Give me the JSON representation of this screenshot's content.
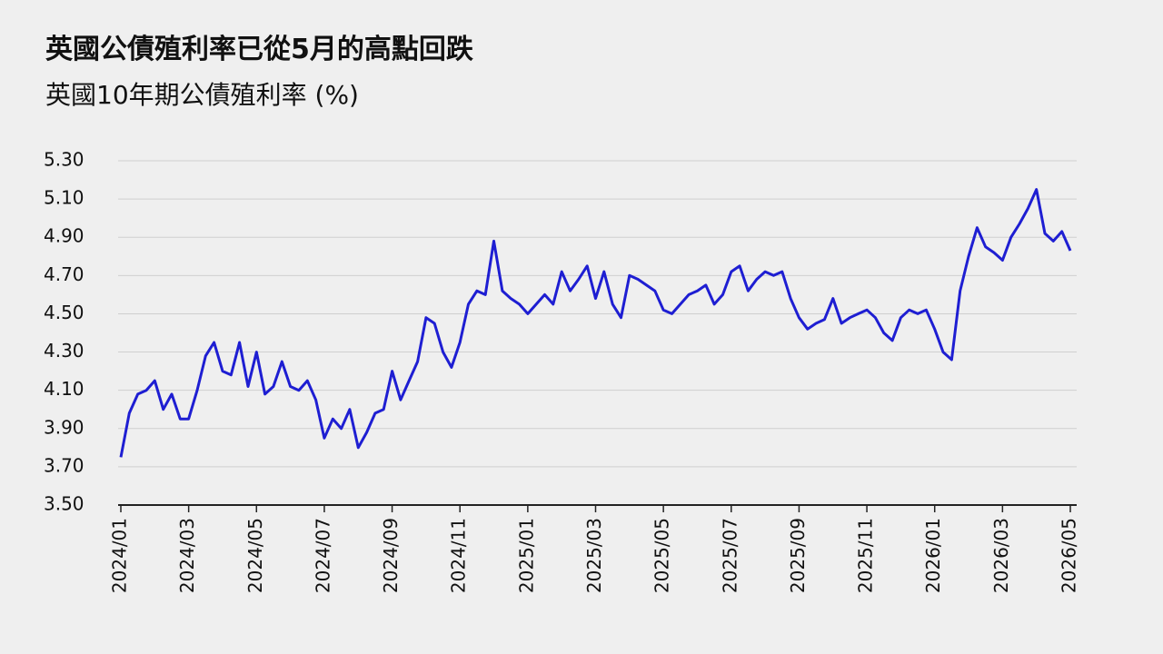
{
  "chart_data": {
    "type": "line",
    "title": "英國公債殖利率已從5月的高點回跌",
    "subtitle": "英國10年期公債殖利率 (%)",
    "color": "#1e1ed2",
    "grid": true,
    "ylim": [
      3.5,
      5.3
    ],
    "yticks": [
      {
        "value": 3.5,
        "label": "3.50"
      },
      {
        "value": 3.7,
        "label": "3.70"
      },
      {
        "value": 3.9,
        "label": "3.90"
      },
      {
        "value": 4.1,
        "label": "4.10"
      },
      {
        "value": 4.3,
        "label": "4.30"
      },
      {
        "value": 4.5,
        "label": "4.50"
      },
      {
        "value": 4.7,
        "label": "4.70"
      },
      {
        "value": 4.9,
        "label": "4.90"
      },
      {
        "value": 5.1,
        "label": "5.10"
      },
      {
        "value": 5.3,
        "label": "5.30"
      }
    ],
    "xticks": [
      "2024/01",
      "2024/03",
      "2024/05",
      "2024/07",
      "2024/09",
      "2024/11",
      "2025/01",
      "2025/03",
      "2025/05",
      "2025/07",
      "2025/09",
      "2025/11",
      "2026/01",
      "2026/03",
      "2026/05"
    ],
    "x": [
      "2024/01",
      "2024/01",
      "2024/01",
      "2024/01",
      "2024/02",
      "2024/02",
      "2024/02",
      "2024/02",
      "2024/03",
      "2024/03",
      "2024/03",
      "2024/03",
      "2024/04",
      "2024/04",
      "2024/04",
      "2024/04",
      "2024/05",
      "2024/05",
      "2024/05",
      "2024/05",
      "2024/06",
      "2024/06",
      "2024/06",
      "2024/06",
      "2024/07",
      "2024/07",
      "2024/07",
      "2024/07",
      "2024/08",
      "2024/08",
      "2024/08",
      "2024/08",
      "2024/09",
      "2024/09",
      "2024/09",
      "2024/09",
      "2024/10",
      "2024/10",
      "2024/10",
      "2024/10",
      "2024/11",
      "2024/11",
      "2024/11",
      "2024/11",
      "2024/12",
      "2024/12",
      "2024/12",
      "2024/12",
      "2025/01",
      "2025/01",
      "2025/01",
      "2025/01",
      "2025/02",
      "2025/02",
      "2025/02",
      "2025/02",
      "2025/03",
      "2025/03",
      "2025/03",
      "2025/03",
      "2025/04",
      "2025/04",
      "2025/04",
      "2025/04",
      "2025/05",
      "2025/05",
      "2025/05",
      "2025/05",
      "2025/06",
      "2025/06",
      "2025/06",
      "2025/06",
      "2025/07",
      "2025/07",
      "2025/07",
      "2025/07",
      "2025/08",
      "2025/08",
      "2025/08",
      "2025/08",
      "2025/09",
      "2025/09",
      "2025/09",
      "2025/09",
      "2025/10",
      "2025/10",
      "2025/10",
      "2025/10",
      "2025/11",
      "2025/11",
      "2025/11",
      "2025/11",
      "2025/12",
      "2025/12",
      "2025/12",
      "2025/12",
      "2026/01",
      "2026/01",
      "2026/01",
      "2026/01",
      "2026/02",
      "2026/02",
      "2026/02",
      "2026/02",
      "2026/03",
      "2026/03",
      "2026/03",
      "2026/03",
      "2026/04",
      "2026/04",
      "2026/04",
      "2026/04",
      "2026/05"
    ],
    "values": [
      3.75,
      3.98,
      4.08,
      4.1,
      4.15,
      4.0,
      4.08,
      3.95,
      3.95,
      4.1,
      4.28,
      4.35,
      4.2,
      4.18,
      4.35,
      4.12,
      4.3,
      4.08,
      4.12,
      4.25,
      4.12,
      4.1,
      4.15,
      4.05,
      3.85,
      3.95,
      3.9,
      4.0,
      3.8,
      3.88,
      3.98,
      4.0,
      4.2,
      4.05,
      4.15,
      4.25,
      4.48,
      4.45,
      4.3,
      4.22,
      4.35,
      4.55,
      4.62,
      4.6,
      4.88,
      4.62,
      4.58,
      4.55,
      4.5,
      4.55,
      4.6,
      4.55,
      4.72,
      4.62,
      4.68,
      4.75,
      4.58,
      4.72,
      4.55,
      4.48,
      4.7,
      4.68,
      4.65,
      4.62,
      4.52,
      4.5,
      4.55,
      4.6,
      4.62,
      4.65,
      4.55,
      4.6,
      4.72,
      4.75,
      4.62,
      4.68,
      4.72,
      4.7,
      4.72,
      4.58,
      4.48,
      4.42,
      4.45,
      4.47,
      4.58,
      4.45,
      4.48,
      4.5,
      4.52,
      4.48,
      4.4,
      4.36,
      4.48,
      4.52,
      4.5,
      4.52,
      4.42,
      4.3,
      4.26,
      4.62,
      4.8,
      4.95,
      4.85,
      4.82,
      4.78,
      4.9,
      4.97,
      5.05,
      5.15,
      4.92,
      4.88,
      4.93,
      4.83
    ]
  }
}
